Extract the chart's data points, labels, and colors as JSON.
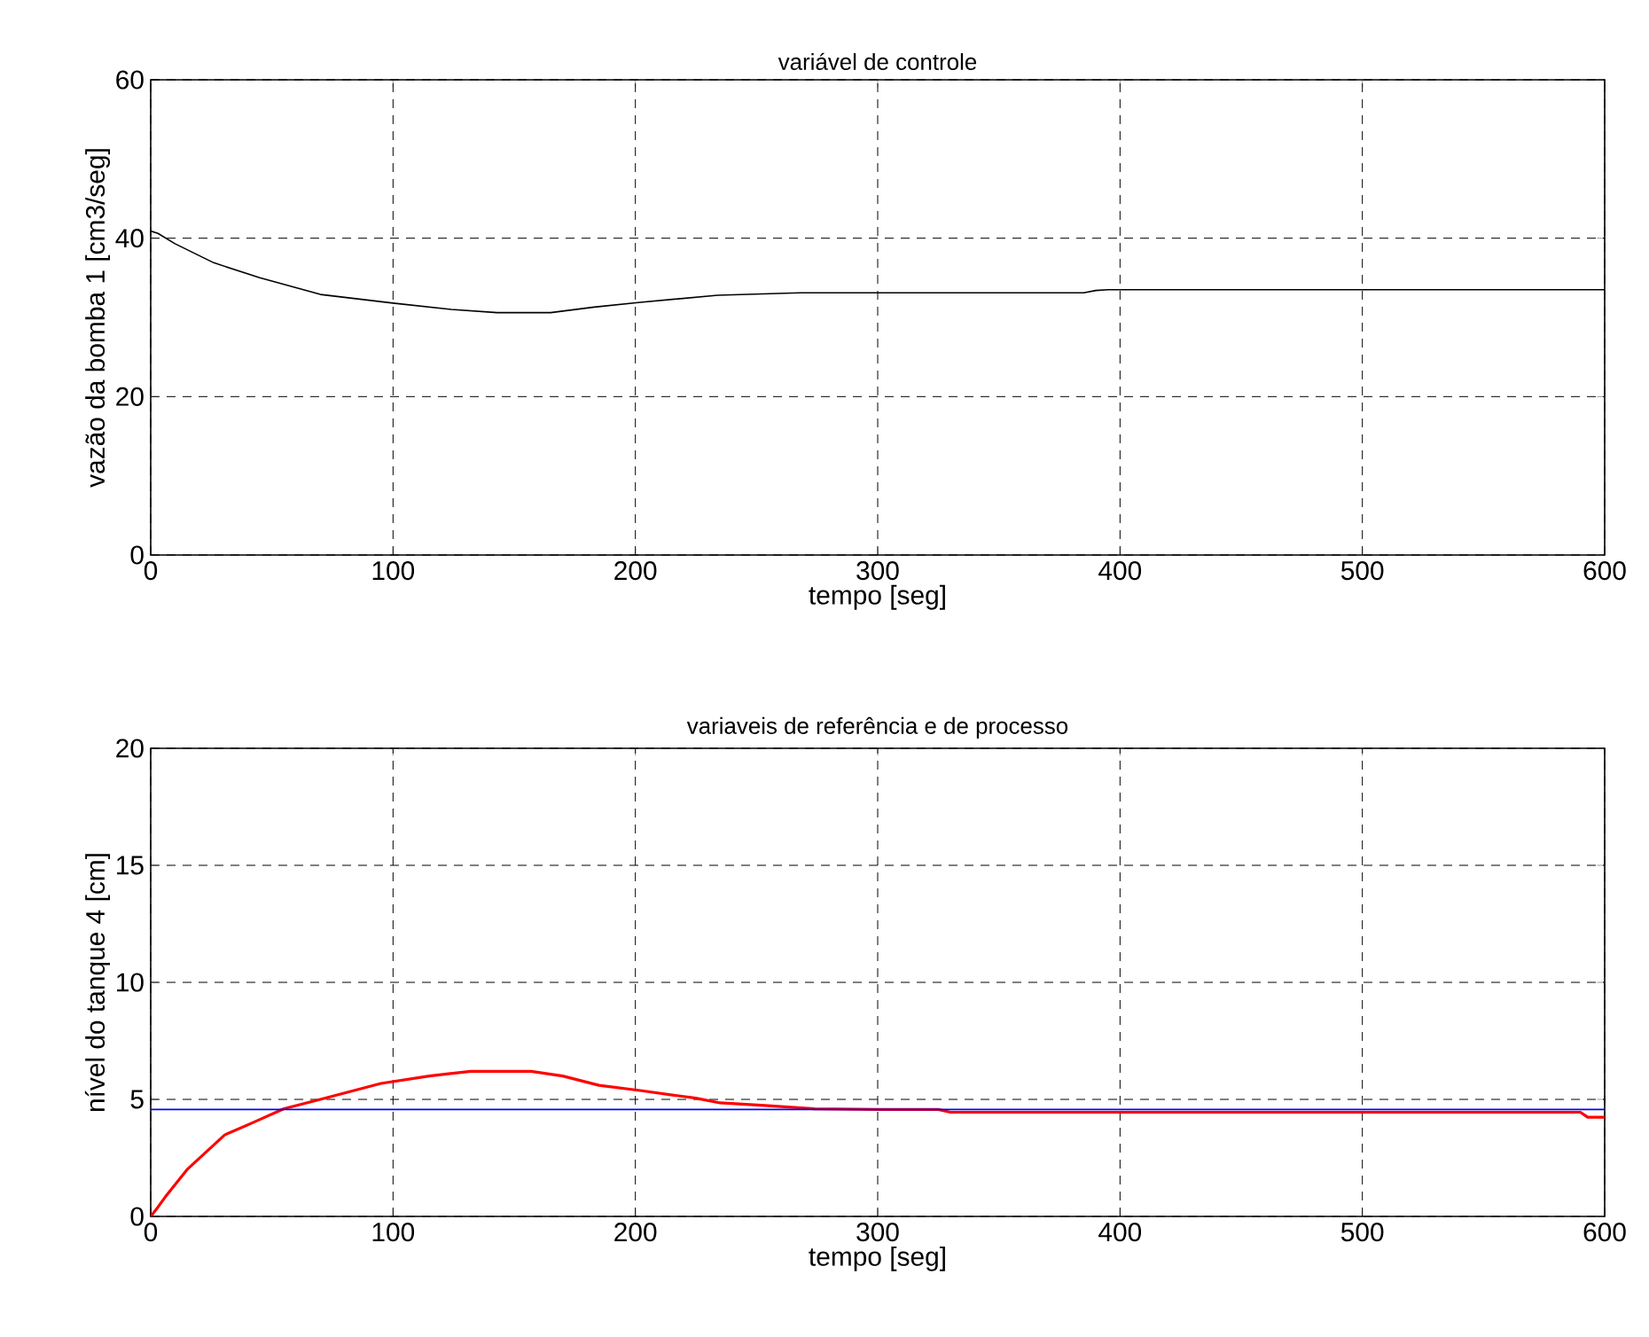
{
  "chart_data": [
    {
      "type": "line",
      "title": "variável de controle",
      "xlabel": "tempo [seg]",
      "ylabel": "vazão da bomba 1 [cm3/seg]",
      "xlim": [
        0,
        600
      ],
      "ylim": [
        0,
        60
      ],
      "xticks": [
        0,
        100,
        200,
        300,
        400,
        500,
        600
      ],
      "yticks": [
        0,
        20,
        40,
        60
      ],
      "grid": true,
      "line_style": "solid",
      "series": [
        {
          "color": "#000000",
          "x": [
            0,
            3,
            10,
            26,
            45,
            70,
            100,
            124,
            143,
            165,
            183,
            202,
            234,
            268,
            300,
            350,
            385,
            390,
            395,
            450,
            500,
            550,
            600
          ],
          "values": [
            40.9,
            40.6,
            39.3,
            36.9,
            35.0,
            32.9,
            31.8,
            31.0,
            30.6,
            30.6,
            31.3,
            31.9,
            32.8,
            33.1,
            33.1,
            33.1,
            33.1,
            33.4,
            33.5,
            33.5,
            33.5,
            33.5,
            33.5
          ]
        }
      ]
    },
    {
      "type": "line",
      "title": "variaveis de referência e de processo",
      "xlabel": "tempo [seg]",
      "ylabel": "nível do tanque 4 [cm]",
      "xlim": [
        0,
        600
      ],
      "ylim": [
        0,
        20
      ],
      "xticks": [
        0,
        100,
        200,
        300,
        400,
        500,
        600
      ],
      "yticks": [
        0,
        5,
        10,
        15,
        20
      ],
      "grid": true,
      "line_style": "solid",
      "series": [
        {
          "color": "#ff0000",
          "x": [
            0,
            3,
            6,
            15,
            30.5,
            42,
            55,
            70,
            95,
            115,
            132,
            157,
            170,
            185,
            202,
            225,
            235,
            252,
            274,
            300,
            325,
            330,
            400,
            500,
            590,
            593,
            600
          ],
          "values": [
            0,
            0.4,
            0.83,
            2.0,
            3.48,
            4.0,
            4.6,
            5.0,
            5.68,
            6.0,
            6.2,
            6.2,
            6.0,
            5.6,
            5.38,
            5.05,
            4.85,
            4.75,
            4.6,
            4.57,
            4.57,
            4.45,
            4.45,
            4.45,
            4.45,
            4.24,
            4.24
          ]
        },
        {
          "color": "#0000ff",
          "x": [
            0,
            600
          ],
          "values": [
            4.57,
            4.57
          ]
        }
      ]
    }
  ]
}
